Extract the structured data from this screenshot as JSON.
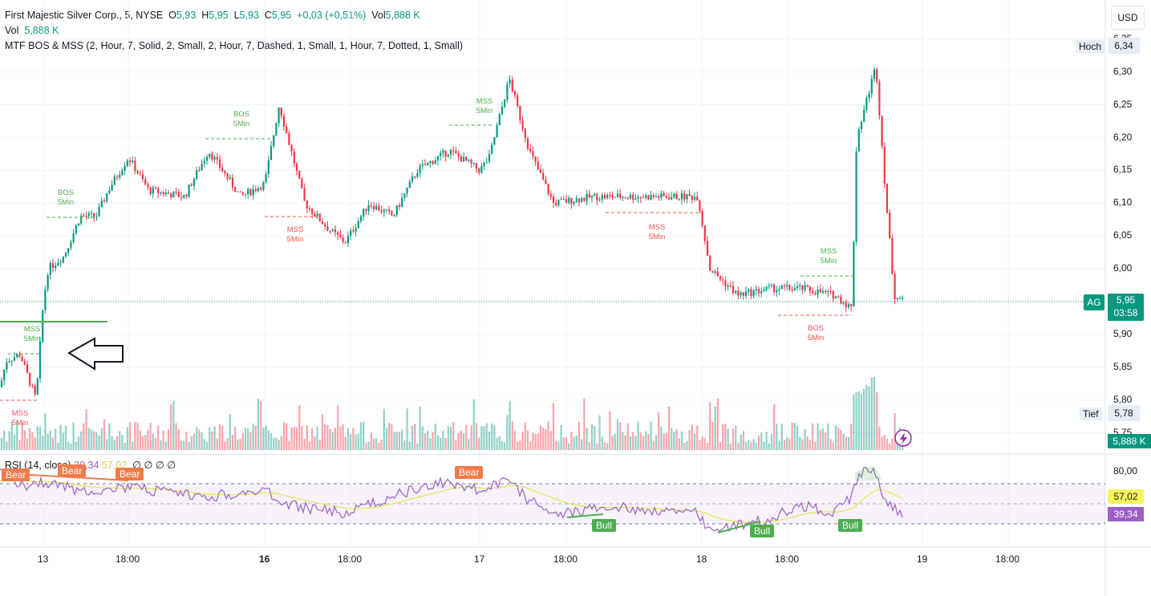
{
  "legend": {
    "symbol": "First Majestic Silver Corp., 5, NYSE",
    "o_label": "O",
    "o_value": "5,93",
    "h_label": "H",
    "h_value": "5,95",
    "l_label": "L",
    "l_value": "5,93",
    "c_label": "C",
    "c_value": "5,95",
    "change": "+0,03 (+0,51%)",
    "vol_label": "Vol",
    "vol_value": "5,888 K",
    "vol_row_label": "Vol",
    "vol_row_value": "5,888 K",
    "indicator": "MTF BOS & MSS (2, Hour, 7, Solid, 2, Small, 2, Hour, 7, Dashed, 1, Small, 1, Hour, 7, Dotted, 1, Small)"
  },
  "currency_button": "USD",
  "price_axis": [
    "6,35",
    "6,30",
    "6,25",
    "6,20",
    "6,15",
    "6,10",
    "6,05",
    "6,00",
    "5,95",
    "5,90",
    "5,85",
    "5,80",
    "5,75"
  ],
  "high_tag": {
    "label": "Hoch",
    "value": "6,34"
  },
  "low_tag": {
    "label": "Tief",
    "value": "5,78"
  },
  "last_tag": {
    "symbol": "AG",
    "price": "5,95",
    "countdown": "03:58"
  },
  "volume_tag": "5,888 K",
  "rsi": {
    "title": "RSI (14, close)",
    "value1": "39,34",
    "value2": "57,02",
    "placeholders": "∅ ∅ ∅ ∅",
    "axis": [
      "80,00"
    ],
    "tag_sma": "57,02",
    "tag_rsi": "39,34"
  },
  "time_axis": [
    "13",
    "18:00",
    "16",
    "18:00",
    "17",
    "18:00",
    "18",
    "18:00",
    "19",
    "18:00"
  ],
  "structure_labels": {
    "mss": "MSS",
    "bos": "BOS",
    "tf": "5Min",
    "bear": "Bear",
    "bull": "Bull"
  },
  "colors": {
    "up": "#089981",
    "down": "#f23645",
    "bos_green": "#4caf50",
    "mss_red": "#ef5350",
    "rsi": "#9c5fc4",
    "rsi_ma": "#e3e85a",
    "bear": "#f07c4a",
    "bull": "#4caf50"
  }
}
